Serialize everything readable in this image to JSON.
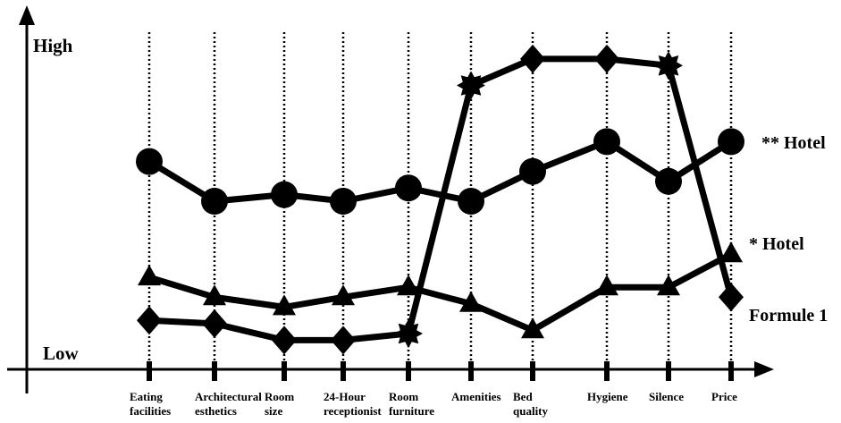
{
  "chart_data": {
    "type": "line",
    "title": "",
    "xlabel": "",
    "ylabel": "",
    "y_high_label": "High",
    "y_low_label": "Low",
    "ylim": [
      0,
      10
    ],
    "grid": "vertical dotted lines at each category",
    "categories": [
      [
        "Eating",
        "facilities"
      ],
      [
        "Architectural",
        "esthetics"
      ],
      [
        "Room",
        "size"
      ],
      [
        "24-Hour",
        "receptionist"
      ],
      [
        "Room",
        "furniture"
      ],
      [
        "Amenities"
      ],
      [
        "Bed",
        "quality"
      ],
      [
        "Hygiene"
      ],
      [
        "Silence"
      ],
      [
        "Price"
      ]
    ],
    "series": [
      {
        "name": "** Hotel",
        "marker": "circle",
        "values": [
          6.2,
          5.0,
          5.2,
          5.0,
          5.4,
          5.0,
          5.9,
          6.8,
          5.6,
          6.8
        ]
      },
      {
        "name": "* Hotel",
        "marker": "triangle",
        "values": [
          2.7,
          2.1,
          1.8,
          2.1,
          2.4,
          1.9,
          1.1,
          2.4,
          2.4,
          3.4
        ]
      },
      {
        "name": "Formule 1",
        "marker": "star",
        "values": [
          1.4,
          1.3,
          0.8,
          0.8,
          1.0,
          8.5,
          9.3,
          9.3,
          9.1,
          2.1
        ]
      }
    ],
    "series_markers": {
      "circle": "circle-icon",
      "triangle": "triangle-icon",
      "star": "star-icon",
      "diamond": "diamond-icon"
    },
    "color": "#000000"
  }
}
